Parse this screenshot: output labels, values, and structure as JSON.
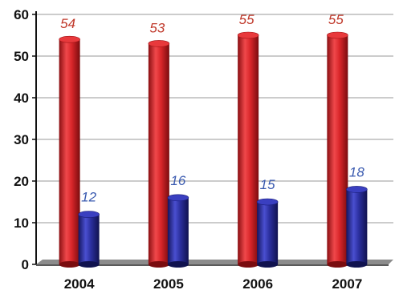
{
  "chart_data": {
    "type": "bar",
    "categories": [
      "2004",
      "2005",
      "2006",
      "2007"
    ],
    "series": [
      {
        "values": [
          54,
          53,
          55,
          55
        ],
        "color": "#d9262a",
        "label_color": "#c0392b"
      },
      {
        "values": [
          12,
          16,
          15,
          18
        ],
        "color": "#2b2f9e",
        "label_color": "#3b5bb0"
      }
    ],
    "ylim": [
      0,
      60
    ],
    "yticks": [
      0,
      10,
      20,
      30,
      40,
      50,
      60
    ],
    "grid": true,
    "title": "",
    "xlabel": "",
    "ylabel": "",
    "style": "3d-cylinder"
  }
}
